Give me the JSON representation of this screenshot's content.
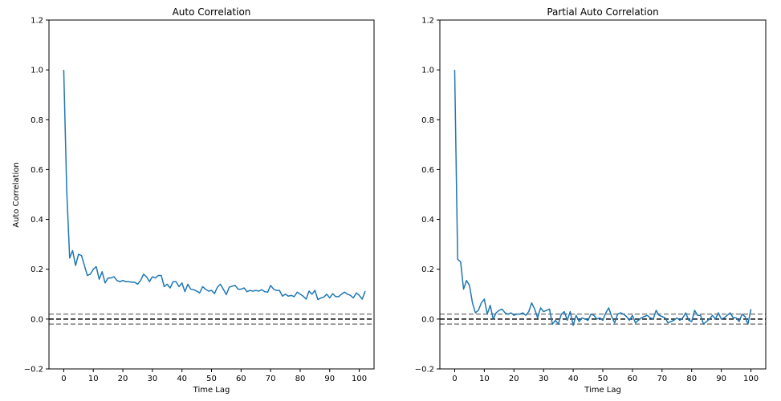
{
  "colors": {
    "series": "#1f77b4",
    "zero_line": "#000000",
    "conf_line": "#808080"
  },
  "chart_data": [
    {
      "type": "line",
      "title": "Auto Correlation",
      "xlabel": "Time Lag",
      "ylabel": "Auto Correlation",
      "xlim": [
        -5,
        105
      ],
      "ylim": [
        -0.2,
        1.2
      ],
      "xticks": [
        0,
        10,
        20,
        30,
        40,
        50,
        60,
        70,
        80,
        90,
        100
      ],
      "yticks": [
        -0.2,
        0.0,
        0.2,
        0.4,
        0.6,
        0.8,
        1.0,
        1.2
      ],
      "ytick_labels": [
        "−0.2",
        "0.0",
        "0.2",
        "0.4",
        "0.6",
        "0.8",
        "1.0",
        "1.2"
      ],
      "reference_lines": {
        "zero": 0.0,
        "upper": 0.02,
        "lower": -0.02
      },
      "grid": false,
      "series": [
        {
          "values": [
            1.0,
            0.52,
            0.245,
            0.275,
            0.215,
            0.26,
            0.255,
            0.215,
            0.175,
            0.18,
            0.2,
            0.21,
            0.16,
            0.19,
            0.145,
            0.165,
            0.165,
            0.17,
            0.155,
            0.15,
            0.155,
            0.15,
            0.15,
            0.148,
            0.148,
            0.14,
            0.155,
            0.18,
            0.17,
            0.15,
            0.17,
            0.165,
            0.175,
            0.175,
            0.13,
            0.14,
            0.125,
            0.15,
            0.15,
            0.13,
            0.145,
            0.11,
            0.14,
            0.12,
            0.118,
            0.112,
            0.105,
            0.13,
            0.12,
            0.112,
            0.115,
            0.102,
            0.128,
            0.14,
            0.12,
            0.098,
            0.128,
            0.132,
            0.135,
            0.12,
            0.12,
            0.125,
            0.11,
            0.115,
            0.112,
            0.115,
            0.112,
            0.118,
            0.11,
            0.108,
            0.135,
            0.12,
            0.115,
            0.115,
            0.092,
            0.1,
            0.092,
            0.095,
            0.09,
            0.108,
            0.1,
            0.092,
            0.08,
            0.112,
            0.1,
            0.115,
            0.078,
            0.085,
            0.088,
            0.1,
            0.085,
            0.102,
            0.09,
            0.09,
            0.1,
            0.108,
            0.1,
            0.095,
            0.085,
            0.105,
            0.095,
            0.08,
            0.112
          ]
        }
      ]
    },
    {
      "type": "line",
      "title": "Partial Auto Correlation",
      "xlabel": "Time Lag",
      "ylabel": "",
      "xlim": [
        -5,
        105
      ],
      "ylim": [
        -0.2,
        1.2
      ],
      "xticks": [
        0,
        10,
        20,
        30,
        40,
        50,
        60,
        70,
        80,
        90,
        100
      ],
      "yticks": [
        -0.2,
        0.0,
        0.2,
        0.4,
        0.6,
        0.8,
        1.0,
        1.2
      ],
      "ytick_labels": [
        "−0.2",
        "0.0",
        "0.2",
        "0.4",
        "0.6",
        "0.8",
        "1.0",
        "1.2"
      ],
      "reference_lines": {
        "zero": 0.0,
        "upper": 0.02,
        "lower": -0.02
      },
      "grid": false,
      "series": [
        {
          "values": [
            1.0,
            0.24,
            0.23,
            0.12,
            0.155,
            0.135,
            0.065,
            0.025,
            0.035,
            0.065,
            0.08,
            0.02,
            0.055,
            0.0,
            0.025,
            0.035,
            0.04,
            0.025,
            0.02,
            0.025,
            0.015,
            0.02,
            0.02,
            0.025,
            0.015,
            0.03,
            0.065,
            0.04,
            0.005,
            0.045,
            0.03,
            0.035,
            0.04,
            -0.02,
            -0.005,
            -0.02,
            0.02,
            0.03,
            -0.005,
            0.03,
            -0.025,
            0.015,
            -0.01,
            0.005,
            0.0,
            -0.005,
            0.02,
            0.015,
            0.0,
            0.005,
            -0.005,
            0.025,
            0.045,
            0.01,
            -0.015,
            0.02,
            0.025,
            0.02,
            0.01,
            -0.005,
            0.015,
            -0.015,
            -0.005,
            0.005,
            0.01,
            0.015,
            0.005,
            0.0,
            0.035,
            0.015,
            0.01,
            0.005,
            -0.015,
            -0.01,
            -0.005,
            0.005,
            -0.005,
            0.005,
            0.025,
            -0.005,
            -0.01,
            0.035,
            0.015,
            0.015,
            -0.02,
            -0.01,
            0.0,
            0.015,
            0.0,
            0.025,
            0.0,
            0.005,
            0.015,
            0.025,
            0.005,
            0.005,
            -0.01,
            0.02,
            0.01,
            -0.02,
            0.04
          ]
        }
      ]
    }
  ]
}
